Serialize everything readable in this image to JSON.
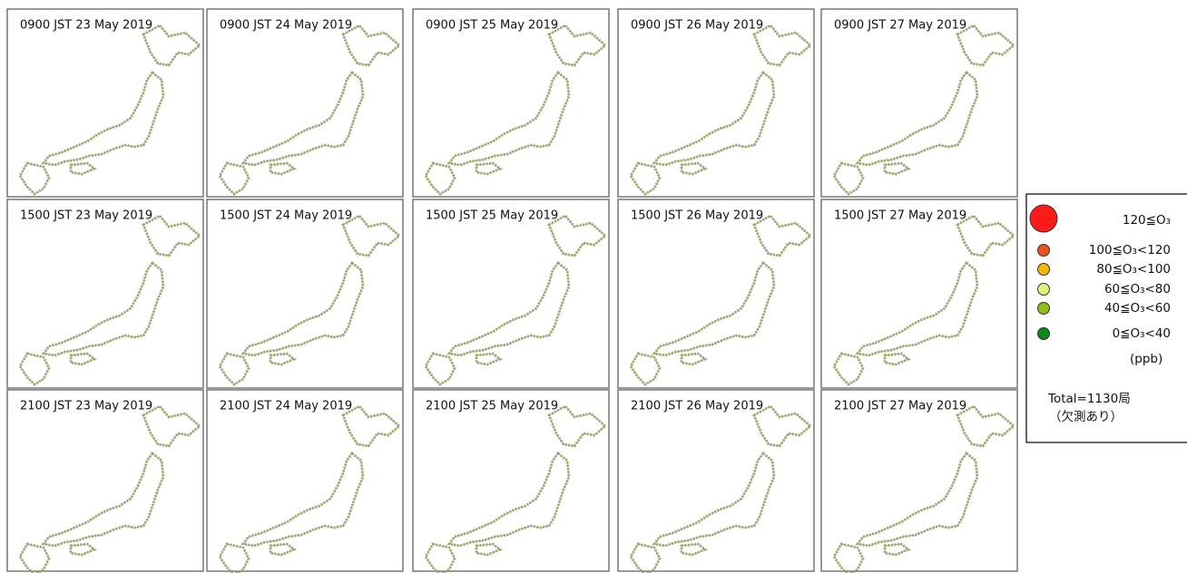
{
  "panels": [
    {
      "title": "0900 JST 23 May 2019"
    },
    {
      "title": "0900 JST 24 May 2019"
    },
    {
      "title": "0900 JST 25 May 2019"
    },
    {
      "title": "0900 JST 26 May 2019"
    },
    {
      "title": "0900 JST 27 May 2019"
    },
    {
      "title": "1500 JST 23 May 2019"
    },
    {
      "title": "1500 JST 24 May 2019"
    },
    {
      "title": "1500 JST 25 May 2019"
    },
    {
      "title": "1500 JST 26 May 2019"
    },
    {
      "title": "1500 JST 27 May 2019"
    },
    {
      "title": "2100 JST 23 May 2019"
    },
    {
      "title": "2100 JST 24 May 2019"
    },
    {
      "title": "2100 JST 25 May 2019"
    },
    {
      "title": "2100 JST 26 May 2019"
    },
    {
      "title": "2100 JST 27 May 2019"
    }
  ],
  "legend": {
    "items": [
      {
        "label": "120≦O₃",
        "color": "#ff1a1a"
      },
      {
        "label": "100≦O₃<120",
        "color": "#e8541c"
      },
      {
        "label": "80≦O₃<100",
        "color": "#f5b800"
      },
      {
        "label": "60≦O₃<80",
        "color": "#d9f57a"
      },
      {
        "label": "40≦O₃<60",
        "color": "#8dbf1a"
      },
      {
        "label": "0≦O₃<40",
        "color": "#0a8a1a"
      }
    ],
    "unit": "(ppb)",
    "total": "Total=1130局",
    "note": "（欠測あり）"
  }
}
